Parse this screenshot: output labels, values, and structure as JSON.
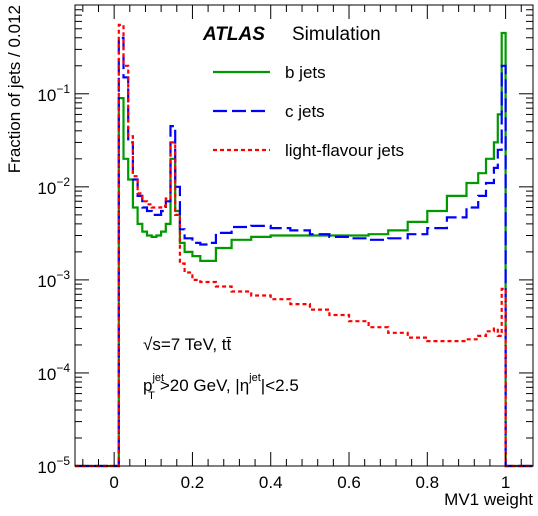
{
  "chart_data": {
    "type": "line",
    "title": "",
    "xlabel": "MV1 weight",
    "ylabel": "Fraction of jets / 0.012",
    "xlim": [
      -0.1,
      1.07
    ],
    "ylim": [
      1e-05,
      0.9
    ],
    "yscale": "log",
    "grid": false,
    "legend_position": "top-right",
    "x_ticks": [
      {
        "value": 0,
        "label": "0"
      },
      {
        "value": 0.2,
        "label": "0.2"
      },
      {
        "value": 0.4,
        "label": "0.4"
      },
      {
        "value": 0.6,
        "label": "0.6"
      },
      {
        "value": 0.8,
        "label": "0.8"
      },
      {
        "value": 1,
        "label": "1"
      }
    ],
    "y_ticks": [
      {
        "value": 1e-05,
        "base": "10",
        "exp": "−5"
      },
      {
        "value": 0.0001,
        "base": "10",
        "exp": "−4"
      },
      {
        "value": 0.001,
        "base": "10",
        "exp": "−3"
      },
      {
        "value": 0.01,
        "base": "10",
        "exp": "−2"
      },
      {
        "value": 0.1,
        "base": "10",
        "exp": "−1"
      }
    ],
    "annotations": {
      "experiment": "ATLAS",
      "experiment_tag": "Simulation",
      "energy_line": "√s=7 TeV, tt̄",
      "cuts_pt": "p",
      "cuts_pt_sup": "jet",
      "cuts_pt_sub": "T",
      "cuts_pt_rest": ">20 GeV, |η",
      "cuts_eta_sup": "jet",
      "cuts_eta_rest": "|<2.5"
    },
    "series": [
      {
        "name": "b jets",
        "color": "#009900",
        "dash": "solid",
        "x": [
          0.012,
          0.024,
          0.036,
          0.048,
          0.06,
          0.072,
          0.084,
          0.096,
          0.108,
          0.12,
          0.132,
          0.144,
          0.156,
          0.168,
          0.18,
          0.2,
          0.22,
          0.24,
          0.26,
          0.3,
          0.35,
          0.4,
          0.45,
          0.5,
          0.55,
          0.6,
          0.65,
          0.7,
          0.75,
          0.8,
          0.85,
          0.9,
          0.93,
          0.95,
          0.97,
          0.98,
          0.99,
          1.0
        ],
        "y": [
          1e-05,
          0.09,
          0.02,
          0.012,
          0.006,
          0.004,
          0.0033,
          0.003,
          0.0029,
          0.003,
          0.0033,
          0.004,
          0.02,
          0.0055,
          0.0025,
          0.002,
          0.0018,
          0.0016,
          0.0016,
          0.0022,
          0.0027,
          0.0029,
          0.003,
          0.003,
          0.003,
          0.003,
          0.003,
          0.0031,
          0.0034,
          0.0042,
          0.0055,
          0.008,
          0.011,
          0.014,
          0.02,
          0.03,
          0.06,
          0.45
        ]
      },
      {
        "name": "c jets",
        "color": "#0000ff",
        "dash": "long-dash",
        "x": [
          0.012,
          0.024,
          0.036,
          0.048,
          0.06,
          0.072,
          0.084,
          0.096,
          0.108,
          0.12,
          0.132,
          0.144,
          0.156,
          0.168,
          0.18,
          0.2,
          0.22,
          0.24,
          0.26,
          0.3,
          0.35,
          0.4,
          0.45,
          0.5,
          0.55,
          0.6,
          0.65,
          0.7,
          0.75,
          0.8,
          0.85,
          0.9,
          0.93,
          0.95,
          0.97,
          0.98,
          0.99,
          1.0
        ],
        "y": [
          1e-05,
          0.4,
          0.15,
          0.03,
          0.012,
          0.008,
          0.006,
          0.0055,
          0.005,
          0.005,
          0.0055,
          0.007,
          0.045,
          0.01,
          0.0035,
          0.0028,
          0.0025,
          0.0024,
          0.0025,
          0.0032,
          0.0037,
          0.0038,
          0.0036,
          0.0034,
          0.0031,
          0.0029,
          0.0028,
          0.0027,
          0.0028,
          0.0031,
          0.0036,
          0.0047,
          0.006,
          0.008,
          0.011,
          0.016,
          0.025,
          0.2
        ]
      },
      {
        "name": "light-flavour jets",
        "color": "#ff0000",
        "dash": "dotted",
        "x": [
          0.012,
          0.024,
          0.036,
          0.048,
          0.06,
          0.072,
          0.084,
          0.096,
          0.108,
          0.12,
          0.132,
          0.144,
          0.156,
          0.168,
          0.18,
          0.2,
          0.22,
          0.24,
          0.26,
          0.3,
          0.35,
          0.4,
          0.45,
          0.5,
          0.55,
          0.6,
          0.65,
          0.7,
          0.75,
          0.8,
          0.85,
          0.9,
          0.93,
          0.95,
          0.97,
          0.98,
          0.99,
          1.0
        ],
        "y": [
          1e-05,
          0.55,
          0.2,
          0.035,
          0.013,
          0.0085,
          0.007,
          0.0065,
          0.006,
          0.006,
          0.0062,
          0.0075,
          0.03,
          0.005,
          0.0015,
          0.0012,
          0.001,
          0.00095,
          0.00095,
          0.00085,
          0.00075,
          0.00068,
          0.00062,
          0.00055,
          0.00048,
          0.00042,
          0.00036,
          0.00031,
          0.00027,
          0.00024,
          0.00022,
          0.00022,
          0.00023,
          0.00025,
          0.00028,
          0.0003,
          0.00025,
          0.0008
        ]
      }
    ]
  }
}
